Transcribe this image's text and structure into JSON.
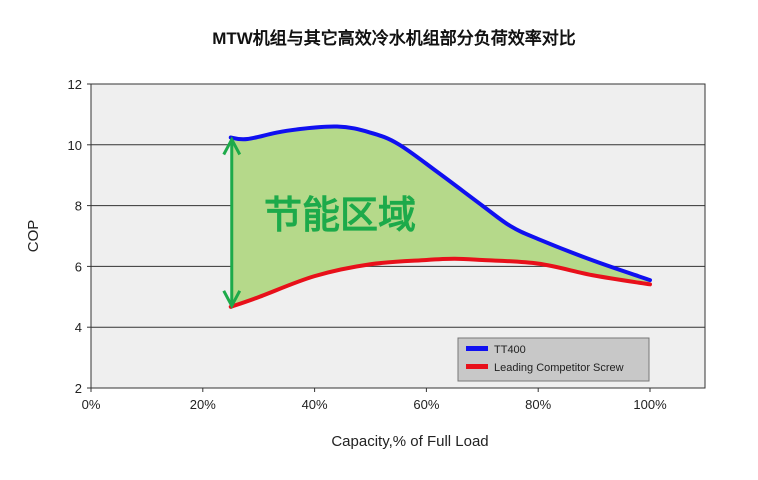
{
  "chart_data": {
    "type": "line",
    "title": "MTW机组与其它高效冷水机组部分负荷效率对比",
    "xlabel": "Capacity,% of Full Load",
    "ylabel": "COP",
    "xlim": [
      0,
      100
    ],
    "ylim": [
      2,
      12
    ],
    "xticks": [
      0,
      20,
      40,
      60,
      80,
      100
    ],
    "xtick_labels": [
      "0%",
      "20%",
      "40%",
      "60%",
      "80%",
      "100%"
    ],
    "yticks": [
      2,
      4,
      6,
      8,
      10,
      12
    ],
    "ytick_labels": [
      "2",
      "4",
      "6",
      "8",
      "10",
      "12"
    ],
    "grid": "horizontal",
    "legend_position": "bottom-right",
    "annotation": "节能区域",
    "series": [
      {
        "name": "TT400",
        "color": "#1010f0",
        "x": [
          25,
          28,
          35,
          44,
          50,
          55,
          62,
          70,
          75,
          80,
          90,
          100
        ],
        "y": [
          10.24,
          10.19,
          10.46,
          10.6,
          10.4,
          10.02,
          9.1,
          8.0,
          7.33,
          6.9,
          6.18,
          5.55
        ]
      },
      {
        "name": "Leading Competitor Screw",
        "color": "#e8101a",
        "x": [
          25,
          30,
          40,
          50,
          60,
          65,
          70,
          80,
          90,
          100
        ],
        "y": [
          4.67,
          4.99,
          5.68,
          6.07,
          6.21,
          6.25,
          6.21,
          6.09,
          5.7,
          5.41
        ]
      }
    ],
    "fill_color": "#b5d98a",
    "arrow_color": "#1daa4a"
  }
}
